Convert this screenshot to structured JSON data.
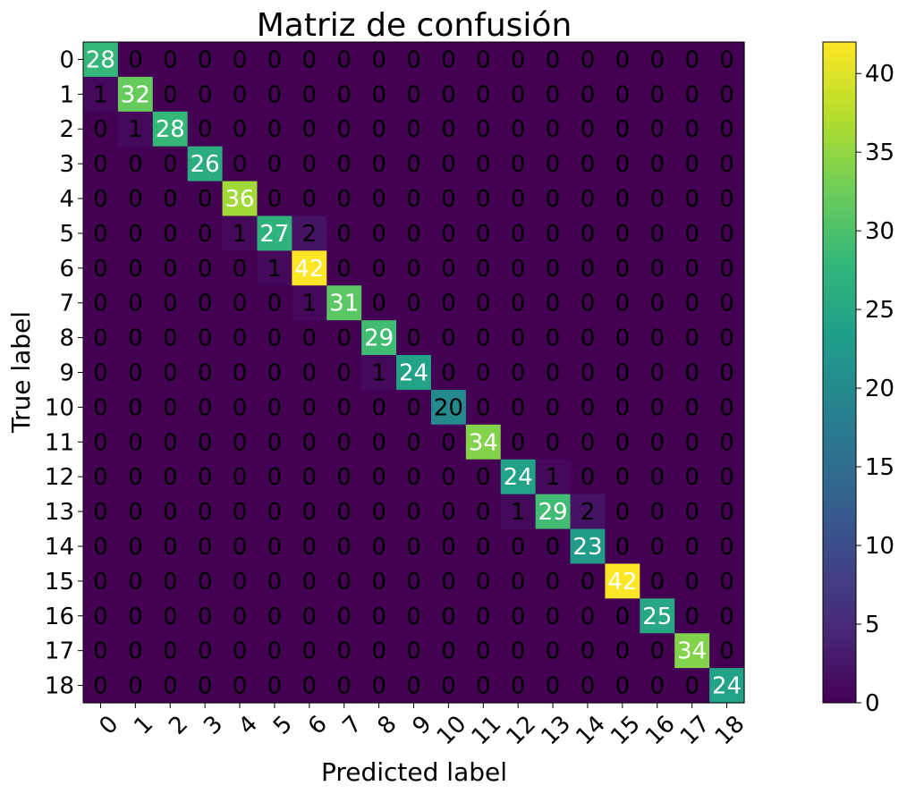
{
  "chart_data": {
    "type": "heatmap",
    "title": "Matriz de confusión",
    "xlabel": "Predicted label",
    "ylabel": "True label",
    "x_categories": [
      "0",
      "1",
      "2",
      "3",
      "4",
      "5",
      "6",
      "7",
      "8",
      "9",
      "10",
      "11",
      "12",
      "13",
      "14",
      "15",
      "16",
      "17",
      "18"
    ],
    "y_categories": [
      "0",
      "1",
      "2",
      "3",
      "4",
      "5",
      "6",
      "7",
      "8",
      "9",
      "10",
      "11",
      "12",
      "13",
      "14",
      "15",
      "16",
      "17",
      "18"
    ],
    "values": [
      [
        28,
        0,
        0,
        0,
        0,
        0,
        0,
        0,
        0,
        0,
        0,
        0,
        0,
        0,
        0,
        0,
        0,
        0,
        0
      ],
      [
        1,
        32,
        0,
        0,
        0,
        0,
        0,
        0,
        0,
        0,
        0,
        0,
        0,
        0,
        0,
        0,
        0,
        0,
        0
      ],
      [
        0,
        1,
        28,
        0,
        0,
        0,
        0,
        0,
        0,
        0,
        0,
        0,
        0,
        0,
        0,
        0,
        0,
        0,
        0
      ],
      [
        0,
        0,
        0,
        26,
        0,
        0,
        0,
        0,
        0,
        0,
        0,
        0,
        0,
        0,
        0,
        0,
        0,
        0,
        0
      ],
      [
        0,
        0,
        0,
        0,
        36,
        0,
        0,
        0,
        0,
        0,
        0,
        0,
        0,
        0,
        0,
        0,
        0,
        0,
        0
      ],
      [
        0,
        0,
        0,
        0,
        1,
        27,
        2,
        0,
        0,
        0,
        0,
        0,
        0,
        0,
        0,
        0,
        0,
        0,
        0
      ],
      [
        0,
        0,
        0,
        0,
        0,
        1,
        42,
        0,
        0,
        0,
        0,
        0,
        0,
        0,
        0,
        0,
        0,
        0,
        0
      ],
      [
        0,
        0,
        0,
        0,
        0,
        0,
        1,
        31,
        0,
        0,
        0,
        0,
        0,
        0,
        0,
        0,
        0,
        0,
        0
      ],
      [
        0,
        0,
        0,
        0,
        0,
        0,
        0,
        0,
        29,
        0,
        0,
        0,
        0,
        0,
        0,
        0,
        0,
        0,
        0
      ],
      [
        0,
        0,
        0,
        0,
        0,
        0,
        0,
        0,
        1,
        24,
        0,
        0,
        0,
        0,
        0,
        0,
        0,
        0,
        0
      ],
      [
        0,
        0,
        0,
        0,
        0,
        0,
        0,
        0,
        0,
        0,
        20,
        0,
        0,
        0,
        0,
        0,
        0,
        0,
        0
      ],
      [
        0,
        0,
        0,
        0,
        0,
        0,
        0,
        0,
        0,
        0,
        0,
        34,
        0,
        0,
        0,
        0,
        0,
        0,
        0
      ],
      [
        0,
        0,
        0,
        0,
        0,
        0,
        0,
        0,
        0,
        0,
        0,
        0,
        24,
        1,
        0,
        0,
        0,
        0,
        0
      ],
      [
        0,
        0,
        0,
        0,
        0,
        0,
        0,
        0,
        0,
        0,
        0,
        0,
        1,
        29,
        2,
        0,
        0,
        0,
        0
      ],
      [
        0,
        0,
        0,
        0,
        0,
        0,
        0,
        0,
        0,
        0,
        0,
        0,
        0,
        0,
        23,
        0,
        0,
        0,
        0
      ],
      [
        0,
        0,
        0,
        0,
        0,
        0,
        0,
        0,
        0,
        0,
        0,
        0,
        0,
        0,
        0,
        42,
        0,
        0,
        0
      ],
      [
        0,
        0,
        0,
        0,
        0,
        0,
        0,
        0,
        0,
        0,
        0,
        0,
        0,
        0,
        0,
        0,
        25,
        0,
        0
      ],
      [
        0,
        0,
        0,
        0,
        0,
        0,
        0,
        0,
        0,
        0,
        0,
        0,
        0,
        0,
        0,
        0,
        0,
        34,
        0
      ],
      [
        0,
        0,
        0,
        0,
        0,
        0,
        0,
        0,
        0,
        0,
        0,
        0,
        0,
        0,
        0,
        0,
        0,
        0,
        24
      ]
    ],
    "colormap": "viridis",
    "color_range": [
      0,
      42
    ],
    "colorbar_ticks": [
      0,
      5,
      10,
      15,
      20,
      25,
      30,
      35,
      40
    ],
    "x_tick_rotation": 45,
    "grid": false,
    "colors": {
      "viridis_stops": [
        "#440154",
        "#482878",
        "#3e4989",
        "#31688e",
        "#26828e",
        "#1f9e89",
        "#35b779",
        "#6ece58",
        "#b5de2b",
        "#fde725"
      ],
      "text_light": "#ffffff",
      "text_dark": "#000000"
    }
  }
}
